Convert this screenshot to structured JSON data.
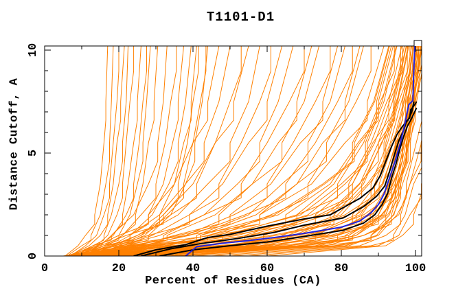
{
  "window": {
    "background": "#ffffff"
  },
  "chart_data": {
    "type": "line",
    "title": "T1101-D1",
    "xlabel": "Percent of Residues (CA)",
    "ylabel": "Distance Cutoff, A",
    "xlim": [
      0,
      101.8
    ],
    "ylim": [
      0,
      10.2
    ],
    "x_ticks_major": [
      0,
      20,
      40,
      60,
      80,
      100
    ],
    "x_ticks_minor": [
      10,
      30,
      50,
      70,
      90
    ],
    "y_ticks_major": [
      0,
      5,
      10
    ],
    "y_ticks_minor": [
      1,
      2,
      3,
      4,
      6,
      7,
      8,
      9
    ],
    "grid": false,
    "legend": "none",
    "axis_color": "#000000",
    "colors": {
      "background_models": "#ff8000",
      "highlight_models": "#000000",
      "best_model": "#2222dd"
    },
    "cutoff_levels": [
      0,
      0.5,
      1,
      2,
      3.5,
      5.5,
      7.5,
      10.2
    ],
    "series": [
      {
        "name": "highlighted-model-black-1",
        "color": "#000000",
        "width": 2,
        "points": [
          [
            24,
            0
          ],
          [
            30,
            0.3
          ],
          [
            38,
            0.55
          ],
          [
            44,
            0.9
          ],
          [
            50,
            1.05
          ],
          [
            60,
            1.45
          ],
          [
            70,
            1.8
          ],
          [
            77,
            2.0
          ],
          [
            80.5,
            2.35
          ],
          [
            85,
            2.8
          ],
          [
            88.5,
            3.3
          ],
          [
            90.5,
            3.9
          ],
          [
            92,
            4.6
          ],
          [
            93.5,
            5.3
          ],
          [
            95,
            5.9
          ],
          [
            96.5,
            6.3
          ],
          [
            98,
            6.6
          ],
          [
            99,
            7.0
          ],
          [
            99.5,
            7.45
          ],
          [
            99.6,
            7.5
          ]
        ]
      },
      {
        "name": "highlighted-model-black-2",
        "color": "#000000",
        "width": 2,
        "points": [
          [
            26,
            0
          ],
          [
            34,
            0.35
          ],
          [
            42,
            0.6
          ],
          [
            52,
            0.85
          ],
          [
            62,
            1.15
          ],
          [
            70,
            1.5
          ],
          [
            80.5,
            1.85
          ],
          [
            86,
            2.4
          ],
          [
            89.5,
            2.9
          ],
          [
            91.7,
            3.4
          ],
          [
            93,
            4.1
          ],
          [
            94.3,
            4.9
          ],
          [
            95.5,
            5.6
          ],
          [
            96.8,
            6.1
          ],
          [
            97.6,
            6.55
          ],
          [
            98.4,
            6.7
          ],
          [
            98.7,
            7.1
          ],
          [
            99.8,
            7.35
          ],
          [
            100.3,
            7.5
          ]
        ]
      },
      {
        "name": "highlighted-model-black-3",
        "color": "#000000",
        "width": 2,
        "points": [
          [
            31,
            0
          ],
          [
            40,
            0.3
          ],
          [
            50,
            0.5
          ],
          [
            60,
            0.68
          ],
          [
            70,
            0.95
          ],
          [
            80.5,
            1.25
          ],
          [
            86,
            1.6
          ],
          [
            89,
            2.0
          ],
          [
            91,
            2.5
          ],
          [
            92.5,
            3.05
          ],
          [
            93.6,
            3.8
          ],
          [
            94.8,
            4.5
          ],
          [
            95.8,
            5.2
          ],
          [
            96.8,
            5.8
          ],
          [
            97.8,
            6.3
          ],
          [
            99,
            6.7
          ],
          [
            100.3,
            7.2
          ]
        ]
      },
      {
        "name": "best-model-blue",
        "color": "#2222dd",
        "width": 2,
        "points": [
          [
            38,
            0
          ],
          [
            41,
            0.45
          ],
          [
            48,
            0.62
          ],
          [
            55,
            0.75
          ],
          [
            62,
            0.9
          ],
          [
            70,
            1.1
          ],
          [
            80,
            1.4
          ],
          [
            85,
            1.7
          ],
          [
            88,
            2.1
          ],
          [
            90,
            2.5
          ],
          [
            91.5,
            3.0
          ],
          [
            93,
            3.8
          ],
          [
            94.5,
            4.6
          ],
          [
            95.8,
            5.4
          ],
          [
            97,
            6.3
          ],
          [
            97.8,
            7.0
          ],
          [
            98.2,
            7.35
          ],
          [
            99.3,
            7.55
          ],
          [
            99.5,
            8.8
          ],
          [
            99.7,
            9.74
          ],
          [
            99.8,
            10.2
          ]
        ]
      }
    ],
    "background_models": {
      "name": "server-models",
      "color": "#ff8000",
      "width": 1,
      "x_at_cutoff": [
        [
          5.5,
          9,
          11,
          13.5,
          15,
          16,
          16.5,
          17
        ],
        [
          6,
          10,
          12.5,
          15,
          16.5,
          17.5,
          18,
          18.5
        ],
        [
          7,
          11,
          14,
          16,
          17.5,
          18.5,
          19.5,
          20
        ],
        [
          6.5,
          12,
          15,
          17,
          18.5,
          19.5,
          20.5,
          21.5
        ],
        [
          8,
          13,
          16,
          18,
          20,
          21,
          22,
          22.5
        ],
        [
          7.5,
          14,
          17,
          19.5,
          21,
          22,
          23,
          24
        ],
        [
          9,
          15,
          18,
          21,
          22.5,
          24,
          25,
          26
        ],
        [
          10,
          16,
          20,
          23,
          25,
          26.5,
          27.5,
          28.5
        ],
        [
          8.5,
          14.5,
          18.5,
          22,
          24,
          25.5,
          26.5,
          27.5
        ],
        [
          11,
          17,
          21,
          24.5,
          26.5,
          28,
          29.5,
          30.5
        ],
        [
          7,
          13,
          18,
          24,
          28,
          30.5,
          32,
          33
        ],
        [
          9,
          16,
          21,
          26,
          30,
          32.5,
          34,
          35.5
        ],
        [
          12,
          18,
          23,
          28,
          32,
          34.5,
          36,
          37.5
        ],
        [
          10,
          17,
          23,
          29,
          33.5,
          36,
          38,
          39.5
        ],
        [
          13,
          20,
          26,
          32,
          36,
          38.5,
          40,
          41.5
        ],
        [
          11,
          19,
          25,
          31,
          35,
          37.5,
          39.5,
          41
        ],
        [
          14,
          22,
          28,
          34,
          38,
          40.5,
          42.5,
          44
        ],
        [
          12.5,
          21,
          27,
          33,
          37.5,
          40,
          42,
          43.5
        ],
        [
          6,
          14,
          20,
          28,
          35,
          40,
          44,
          47
        ],
        [
          8,
          16,
          23,
          31,
          38,
          43,
          47,
          50
        ],
        [
          10,
          18,
          25,
          34,
          41,
          46,
          50,
          53
        ],
        [
          7,
          15,
          22,
          32,
          40,
          46,
          51,
          55
        ],
        [
          9,
          18,
          26,
          36,
          44,
          50,
          55,
          58
        ],
        [
          11,
          21,
          29,
          39,
          47,
          53,
          58,
          61
        ],
        [
          8.5,
          19,
          28,
          39,
          48,
          55,
          60,
          64
        ],
        [
          12,
          23,
          32,
          43,
          52,
          58,
          63,
          67
        ],
        [
          10,
          21,
          31,
          43,
          53,
          60,
          66,
          70
        ],
        [
          13,
          25,
          35,
          47,
          56,
          63,
          68,
          72
        ],
        [
          9,
          22,
          33,
          46,
          56,
          64,
          70,
          74
        ],
        [
          14,
          27,
          38,
          51,
          60,
          67,
          73,
          77
        ],
        [
          11,
          24,
          36,
          50,
          61,
          69,
          75,
          79
        ],
        [
          15,
          29,
          41,
          55,
          64,
          71,
          77,
          81
        ],
        [
          12,
          26,
          39,
          54,
          65,
          73,
          79,
          83
        ],
        [
          16,
          31,
          44,
          58,
          68,
          75,
          81,
          85
        ],
        [
          13,
          28,
          42,
          57,
          68,
          76,
          82,
          86
        ],
        [
          17,
          33,
          47,
          61,
          71,
          78,
          84,
          88
        ],
        [
          6,
          30,
          50,
          68,
          78,
          85,
          90,
          94
        ],
        [
          7,
          34,
          54,
          71,
          81,
          87,
          91.5,
          95
        ],
        [
          8,
          38,
          58,
          74,
          83,
          89,
          93,
          96.5
        ],
        [
          9,
          42,
          61,
          77,
          85,
          90,
          94,
          97.5
        ],
        [
          10,
          46,
          64,
          79,
          87,
          91.5,
          95,
          98
        ],
        [
          11,
          50,
          67,
          81,
          88,
          92.5,
          95.5,
          98.5
        ],
        [
          12,
          54,
          70,
          83,
          89.5,
          93.5,
          96.5,
          99
        ],
        [
          13,
          58,
          73,
          85,
          91,
          94.5,
          97,
          99.5
        ],
        [
          14,
          62,
          76,
          87,
          92,
          95,
          97.5,
          100
        ],
        [
          15,
          66,
          79,
          88.5,
          93,
          95.5,
          98,
          100.5
        ],
        [
          16,
          70,
          82,
          90,
          94,
          96.5,
          98.5,
          101
        ],
        [
          18,
          73,
          84,
          91,
          94.5,
          97,
          99,
          101.3
        ],
        [
          20,
          76,
          86,
          92,
          95,
          97.5,
          99.3,
          101.5
        ],
        [
          22,
          79,
          88,
          93,
          95.5,
          98,
          99.6,
          101.8
        ],
        [
          24,
          81,
          89.5,
          94,
          96,
          98.2,
          99.8,
          102
        ],
        [
          25,
          60,
          78,
          90,
          94.5,
          97,
          99,
          101
        ],
        [
          28,
          65,
          81,
          91.5,
          95,
          97.5,
          99.4,
          101.5
        ],
        [
          30,
          70,
          84,
          92.5,
          95.5,
          98,
          99.7,
          102
        ],
        [
          33,
          74,
          86,
          93.5,
          96,
          98.3,
          100,
          102.5
        ],
        [
          36,
          78,
          88,
          94.2,
          96.5,
          98.6,
          100.3,
          103
        ],
        [
          40,
          82,
          90,
          95,
          97.5,
          100.2,
          103,
          106
        ],
        [
          45,
          85,
          92,
          96,
          98.5,
          101.6,
          104,
          108
        ],
        [
          50,
          88,
          94,
          97.2,
          99.5,
          102.5,
          105,
          109
        ],
        [
          55,
          90,
          95.5,
          98.5,
          101.6,
          105,
          108,
          112
        ],
        [
          60,
          92,
          96.5,
          99.5,
          102.6,
          106,
          110,
          114
        ],
        [
          35,
          75,
          88,
          95.5,
          98.5,
          101.5,
          104,
          107
        ],
        [
          20,
          55,
          75,
          88,
          93.5,
          96.8,
          98.8,
          100.8
        ],
        [
          17,
          48,
          68,
          84,
          91,
          95,
          97.8,
          100.2
        ],
        [
          26,
          68,
          83,
          92,
          95.2,
          97.7,
          99.5,
          101.7
        ],
        [
          8,
          35,
          55,
          75,
          85.5,
          91,
          94.8,
          97.8
        ],
        [
          5.5,
          25,
          45,
          65,
          77,
          84.5,
          89.5,
          93.5
        ],
        [
          6.5,
          28,
          48,
          69,
          80,
          86.5,
          91,
          94.8
        ],
        [
          7.5,
          32,
          52,
          72,
          82,
          88,
          92.3,
          96
        ],
        [
          9.5,
          44,
          62.5,
          78,
          86,
          90.8,
          94.4,
          97.6
        ],
        [
          10.5,
          48,
          65.5,
          80,
          87.5,
          92,
          95.2,
          98.2
        ],
        [
          12.5,
          56,
          71.5,
          84,
          90.2,
          94,
          96.8,
          99.2
        ],
        [
          5,
          20,
          38,
          58,
          72,
          81,
          87,
          91.5
        ],
        [
          6,
          23,
          42,
          62,
          75,
          83,
          88.7,
          92.8
        ],
        [
          19,
          52,
          72,
          86,
          92.5,
          95.8,
          98.2,
          100.4
        ],
        [
          15,
          60,
          77,
          87.8,
          92.8,
          95.3,
          97.9,
          100.2
        ],
        [
          7,
          26,
          44,
          63,
          75.5,
          83.5,
          89,
          93
        ],
        [
          8.5,
          30,
          49,
          68,
          79,
          86,
          90.5,
          94.3
        ],
        [
          11,
          36,
          55,
          73,
          83,
          88.5,
          92.8,
          96.3
        ],
        [
          13,
          40,
          59,
          76,
          84.8,
          90,
          93.8,
          97
        ],
        [
          14,
          52,
          68,
          82,
          89,
          93.2,
          96.2,
          98.8
        ],
        [
          16,
          58,
          74,
          85.5,
          91.3,
          94.7,
          97.3,
          99.6
        ],
        [
          22,
          62,
          79,
          89,
          93.8,
          96.4,
          98.5,
          100.6
        ],
        [
          27,
          66,
          82,
          90.8,
          94.6,
          97.1,
          98.9,
          100.9
        ]
      ]
    }
  }
}
